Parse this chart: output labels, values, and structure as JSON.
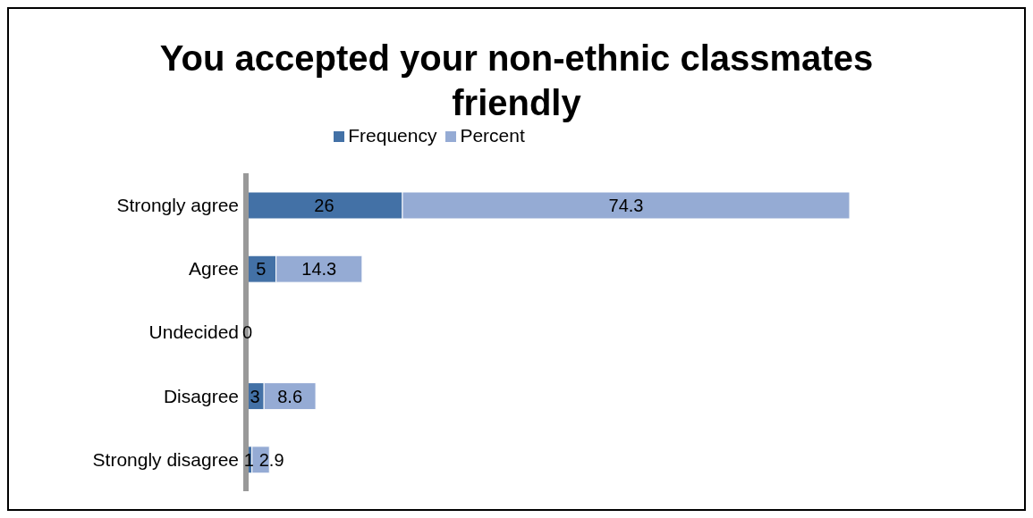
{
  "chart_data": {
    "type": "bar",
    "orientation": "horizontal",
    "stacked": true,
    "title": "You accepted your non-ethnic classmates friendly",
    "categories": [
      "Strongly agree",
      "Agree",
      "Undecided",
      "Disagree",
      "Strongly disagree"
    ],
    "series": [
      {
        "name": "Frequency",
        "color": "#4371a6",
        "values": [
          26,
          5,
          0,
          3,
          1
        ],
        "value_labels": [
          "26",
          "5",
          "0",
          "3",
          "1"
        ]
      },
      {
        "name": "Percent",
        "color": "#95abd4",
        "values": [
          74.3,
          14.3,
          0,
          8.6,
          2.9
        ],
        "value_labels": [
          "74.3",
          "14.3",
          null,
          "8.6",
          "2.9"
        ]
      }
    ],
    "legend": "top",
    "grid": false
  }
}
